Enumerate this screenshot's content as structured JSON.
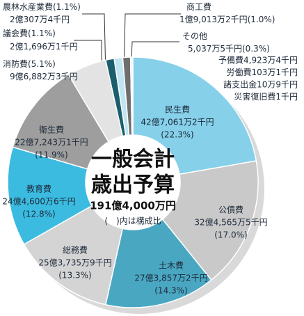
{
  "chart_data": {
    "type": "pie",
    "center_title": [
      "一般会計",
      "歳出予算"
    ],
    "center_total": "191億4,000万円",
    "center_note": "(　)内は構成比",
    "categories": [
      "民生費",
      "公債費",
      "土木費",
      "総務費",
      "教育費",
      "衛生費",
      "消防費",
      "議会費",
      "農林水産業費",
      "商工費",
      "その他"
    ],
    "amounts": [
      "42億7,061万2千円",
      "32億4,565万5千円",
      "27億3,857万2千円",
      "25億3,735万9千円",
      "24億4,600万6千円",
      "22億7,243万1千円",
      "9億6,882万3千円",
      "2億1,696万1千円",
      "2億307万4千円",
      "1億9,013万2千円",
      "5,037万5千円"
    ],
    "values": [
      22.3,
      17.0,
      14.3,
      13.3,
      12.8,
      11.9,
      5.1,
      1.1,
      1.1,
      1.0,
      0.3
    ],
    "value_labels": [
      "(22.3%)",
      "(17.0%)",
      "(14.3%)",
      "(13.3%)",
      "(12.8%)",
      "(11.9%)",
      "(5.1%)",
      "(1.1%)",
      "(1.1%)",
      "(1.0%)",
      "(0.3%)"
    ],
    "colors": [
      "#86d0ea",
      "#c9c9c9",
      "#4aa7c2",
      "#d4d4d4",
      "#3bbbe0",
      "#9e9e9e",
      "#e3e3e3",
      "#1b5e6e",
      "#bfe5f2",
      "#6e6e6e",
      "#f4f4f4"
    ],
    "other_breakdown": [
      "予備費4,923万4千円",
      "労働費103万1千円",
      "諸支出金10万9千円",
      "災害復旧費1千円"
    ]
  }
}
